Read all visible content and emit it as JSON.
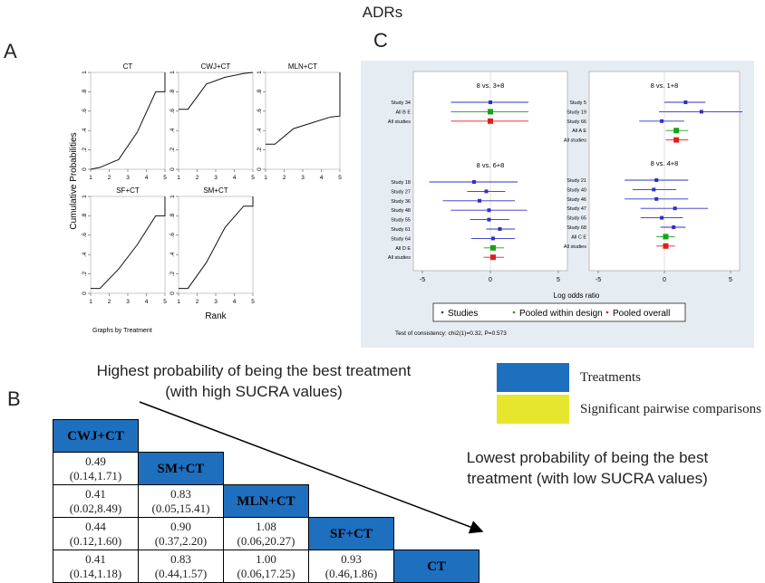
{
  "main_title": "ADRs",
  "panels": {
    "a": "A",
    "b": "B",
    "c": "C"
  },
  "colors": {
    "treatment": "#1f6fbf",
    "significant": "#e6e62e",
    "forest_bg": "#e6edf2",
    "studies": "#3030c0",
    "pooled_within": "#1aa01a",
    "pooled_overall": "#e02020"
  },
  "chart_data": [
    {
      "type": "line",
      "ylabel": "Cumulative Probabilities",
      "xlabel": "Rank",
      "footnote": "Graphs by Treatment",
      "x_ticks": [
        "1",
        "2",
        "3",
        "4",
        "5"
      ],
      "y_ticks": [
        "0",
        ".2",
        ".4",
        ".6",
        ".8",
        "1"
      ],
      "xlim": [
        1,
        5
      ],
      "ylim": [
        0,
        1
      ],
      "subplots": [
        {
          "name": "CT",
          "x": [
            1,
            1.5,
            2.5,
            3.5,
            4.5,
            5,
            5
          ],
          "y": [
            0,
            0.02,
            0.1,
            0.38,
            0.8,
            0.8,
            1
          ]
        },
        {
          "name": "CWJ+CT",
          "x": [
            1,
            1.5,
            2.5,
            3.5,
            4.5,
            5
          ],
          "y": [
            0.62,
            0.62,
            0.88,
            0.95,
            0.99,
            1
          ]
        },
        {
          "name": "MLN+CT",
          "x": [
            1,
            1.5,
            2.5,
            3.5,
            4.5,
            5,
            5
          ],
          "y": [
            0.26,
            0.26,
            0.42,
            0.48,
            0.54,
            0.55,
            1
          ]
        },
        {
          "name": "SF+CT",
          "x": [
            1,
            1.5,
            2.5,
            3.5,
            4.5,
            5,
            5
          ],
          "y": [
            0.05,
            0.05,
            0.25,
            0.5,
            0.8,
            0.8,
            1
          ]
        },
        {
          "name": "SM+CT",
          "x": [
            1,
            1.5,
            2.5,
            3.5,
            4.5,
            5,
            5
          ],
          "y": [
            0.05,
            0.05,
            0.32,
            0.68,
            0.9,
            0.9,
            1
          ]
        }
      ]
    },
    {
      "type": "scatter",
      "xlabel": "Log odds ratio",
      "x_ticks": [
        "-5",
        "0",
        "5"
      ],
      "xlim": [
        -5,
        5
      ],
      "legend": [
        "Studies",
        "Pooled within design",
        "Pooled overall"
      ],
      "footnote": "Test of consistency: chi2(1)=0.32, P=0.573",
      "columns": [
        {
          "groups": [
            {
              "title": "8 vs. 3+8",
              "rows": [
                {
                  "label": "Study 34",
                  "est": 0,
                  "lo": -2.9,
                  "hi": 2.8,
                  "kind": "study"
                },
                {
                  "label": "All B E",
                  "est": 0,
                  "lo": -2.9,
                  "hi": 2.8,
                  "kind": "within"
                },
                {
                  "label": "All studies",
                  "est": 0,
                  "lo": -2.9,
                  "hi": 2.8,
                  "kind": "overall"
                }
              ]
            },
            {
              "title": "8 vs. 6+8",
              "rows": [
                {
                  "label": "Study 18",
                  "est": -1.2,
                  "lo": -4.5,
                  "hi": 2.0,
                  "kind": "study"
                },
                {
                  "label": "Study 27",
                  "est": -0.3,
                  "lo": -1.7,
                  "hi": 1.1,
                  "kind": "study"
                },
                {
                  "label": "Study 36",
                  "est": -0.8,
                  "lo": -3.5,
                  "hi": 1.8,
                  "kind": "study"
                },
                {
                  "label": "Study 48",
                  "est": -0.1,
                  "lo": -2.9,
                  "hi": 2.7,
                  "kind": "study"
                },
                {
                  "label": "Study 55",
                  "est": -0.1,
                  "lo": -1.5,
                  "hi": 1.4,
                  "kind": "study"
                },
                {
                  "label": "Study 61",
                  "est": 0.7,
                  "lo": -0.3,
                  "hi": 1.8,
                  "kind": "study"
                },
                {
                  "label": "Study 64",
                  "est": 0.2,
                  "lo": -1.4,
                  "hi": 1.8,
                  "kind": "study"
                },
                {
                  "label": "All D E",
                  "est": 0.2,
                  "lo": -0.5,
                  "hi": 1.0,
                  "kind": "within"
                },
                {
                  "label": "All studies",
                  "est": 0.2,
                  "lo": -0.5,
                  "hi": 1.0,
                  "kind": "overall"
                }
              ]
            }
          ]
        },
        {
          "groups": [
            {
              "title": "8 vs. 1+8",
              "rows": [
                {
                  "label": "Study 5",
                  "est": 1.6,
                  "lo": 0.0,
                  "hi": 3.1,
                  "kind": "study"
                },
                {
                  "label": "Study 19",
                  "est": 2.8,
                  "lo": -0.4,
                  "hi": 5.9,
                  "kind": "study"
                },
                {
                  "label": "Study 66",
                  "est": -0.2,
                  "lo": -1.9,
                  "hi": 1.5,
                  "kind": "study"
                },
                {
                  "label": "All A E",
                  "est": 0.9,
                  "lo": 0.1,
                  "hi": 1.8,
                  "kind": "within"
                },
                {
                  "label": "All studies",
                  "est": 0.9,
                  "lo": 0.1,
                  "hi": 1.8,
                  "kind": "overall"
                }
              ]
            },
            {
              "title": "8 vs. 4+8",
              "rows": [
                {
                  "label": "Study 21",
                  "est": -0.6,
                  "lo": -3.0,
                  "hi": 1.8,
                  "kind": "study"
                },
                {
                  "label": "Study 40",
                  "est": -0.8,
                  "lo": -2.4,
                  "hi": 0.9,
                  "kind": "study"
                },
                {
                  "label": "Study 46",
                  "est": -0.6,
                  "lo": -3.0,
                  "hi": 1.8,
                  "kind": "study"
                },
                {
                  "label": "Study 47",
                  "est": 0.8,
                  "lo": -1.8,
                  "hi": 3.3,
                  "kind": "study"
                },
                {
                  "label": "Study 65",
                  "est": -0.2,
                  "lo": -1.8,
                  "hi": 1.4,
                  "kind": "study"
                },
                {
                  "label": "Study 68",
                  "est": 0.7,
                  "lo": -0.3,
                  "hi": 1.6,
                  "kind": "study"
                },
                {
                  "label": "All C E",
                  "est": 0.1,
                  "lo": -0.6,
                  "hi": 0.8,
                  "kind": "within"
                },
                {
                  "label": "All studies",
                  "est": 0.1,
                  "lo": -0.6,
                  "hi": 0.8,
                  "kind": "overall"
                }
              ]
            }
          ]
        }
      ]
    },
    {
      "type": "table",
      "treatments": [
        "CWJ+CT",
        "SM+CT",
        "MLN+CT",
        "SF+CT",
        "CT"
      ],
      "rows": [
        [
          [
            "0.49",
            "(0.14,1.71)"
          ]
        ],
        [
          [
            "0.41",
            "(0.02,8.49)"
          ],
          [
            "0.83",
            "(0.05,15.41)"
          ]
        ],
        [
          [
            "0.44",
            "(0.12,1.60)"
          ],
          [
            "0.90",
            "(0.37,2.20)"
          ],
          [
            "1.08",
            "(0.06,20.27)"
          ]
        ],
        [
          [
            "0.41",
            "(0.14,1.18)"
          ],
          [
            "0.83",
            "(0.44,1.57)"
          ],
          [
            "1.00",
            "(0.06,17.25)"
          ],
          [
            "0.93",
            "(0.46,1.86)"
          ]
        ]
      ]
    }
  ],
  "captions": {
    "high": [
      "Highest probability of being the best treatment",
      "(with high SUCRA values)"
    ],
    "low": [
      "Lowest probability of being the best",
      "treatment (with low SUCRA values)"
    ]
  },
  "legend_b": {
    "treatments": "Treatments",
    "significant": "Significant pairwise comparisons"
  }
}
